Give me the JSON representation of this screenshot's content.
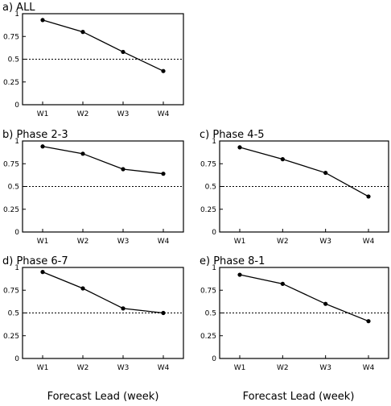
{
  "chart_data": [
    {
      "type": "line",
      "title": "a) ALL",
      "categories": [
        "W1",
        "W2",
        "W3",
        "W4"
      ],
      "values": [
        0.93,
        0.8,
        0.58,
        0.37
      ],
      "reference_line": 0.5,
      "ylim": [
        0,
        1
      ],
      "yticks": [
        "0",
        "0.25",
        "0.5",
        "0.75",
        "1"
      ]
    },
    {
      "type": "line",
      "title": "b) Phase 2-3",
      "categories": [
        "W1",
        "W2",
        "W3",
        "W4"
      ],
      "values": [
        0.94,
        0.86,
        0.69,
        0.64
      ],
      "reference_line": 0.5,
      "ylim": [
        0,
        1
      ],
      "yticks": [
        "0",
        "0.25",
        "0.5",
        "0.75",
        "1"
      ]
    },
    {
      "type": "line",
      "title": "c) Phase 4-5",
      "categories": [
        "W1",
        "W2",
        "W3",
        "W4"
      ],
      "values": [
        0.93,
        0.8,
        0.65,
        0.39
      ],
      "reference_line": 0.5,
      "ylim": [
        0,
        1
      ],
      "yticks": [
        "0",
        "0.25",
        "0.5",
        "0.75",
        "1"
      ]
    },
    {
      "type": "line",
      "title": "d) Phase 6-7",
      "categories": [
        "W1",
        "W2",
        "W3",
        "W4"
      ],
      "values": [
        0.95,
        0.77,
        0.55,
        0.5
      ],
      "reference_line": 0.5,
      "ylim": [
        0,
        1
      ],
      "yticks": [
        "0",
        "0.25",
        "0.5",
        "0.75",
        "1"
      ]
    },
    {
      "type": "line",
      "title": "e) Phase 8-1",
      "categories": [
        "W1",
        "W2",
        "W3",
        "W4"
      ],
      "values": [
        0.92,
        0.82,
        0.6,
        0.41
      ],
      "reference_line": 0.5,
      "ylim": [
        0,
        1
      ],
      "yticks": [
        "0",
        "0.25",
        "0.5",
        "0.75",
        "1"
      ]
    }
  ],
  "xlabels": [
    "Forecast Lead (week)",
    "Forecast Lead (week)"
  ]
}
